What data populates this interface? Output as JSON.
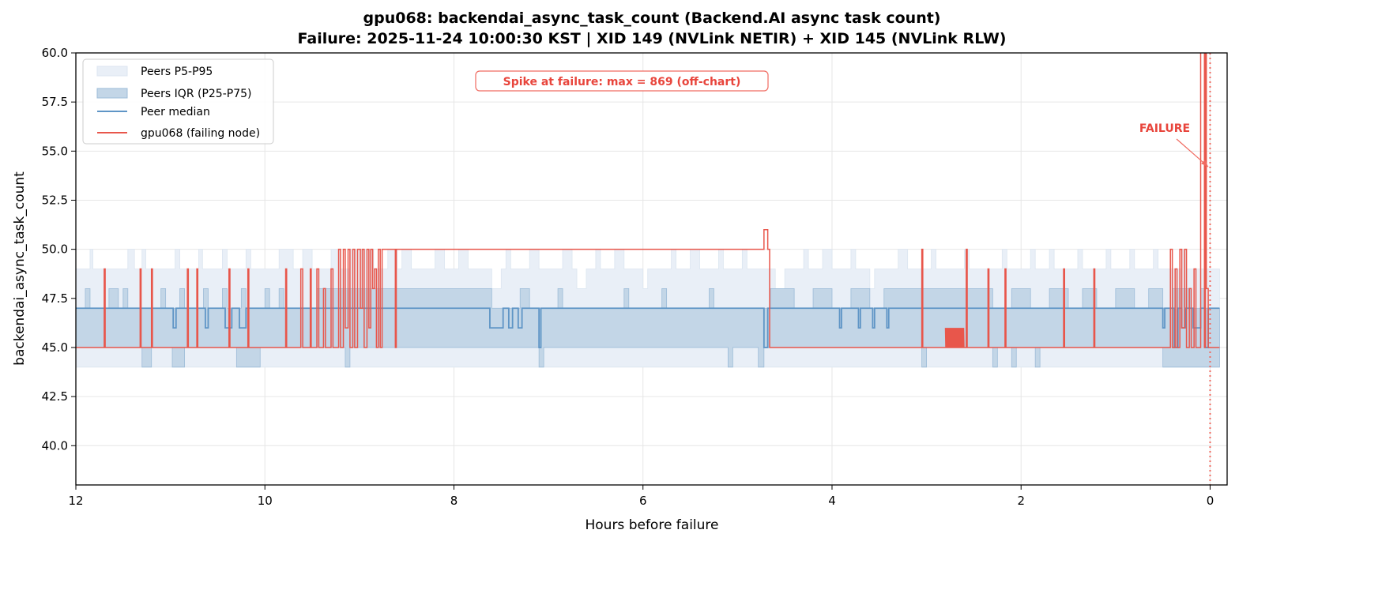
{
  "chart_data": {
    "type": "line",
    "title": "gpu068: backendai_async_task_count (Backend.AI async task count)",
    "subtitle": "Failure: 2025-11-24 10:00:30 KST | XID 149 (NVLink NETIR) + XID 145 (NVLink RLW)",
    "xlabel": "Hours before failure",
    "ylabel": "backendai_async_task_count",
    "xlim": [
      12,
      -0.18
    ],
    "ylim": [
      38,
      60
    ],
    "xticks": [
      12,
      10,
      8,
      6,
      4,
      2,
      0
    ],
    "xtick_labels": [
      "12",
      "10",
      "8",
      "6",
      "4",
      "2",
      "0"
    ],
    "yticks": [
      40,
      42.5,
      45,
      47.5,
      50,
      52.5,
      55,
      57.5,
      60
    ],
    "ytick_labels": [
      "40.0",
      "42.5",
      "45.0",
      "47.5",
      "50.0",
      "52.5",
      "55.0",
      "57.5",
      "60.0"
    ],
    "grid": true,
    "legend_position": "top-left",
    "legend": [
      "Peers P5-P95",
      "Peers IQR (P25-P75)",
      "Peer median",
      "gpu068 (failing node)"
    ],
    "colors": {
      "band_outer": "#e9eff7",
      "band_iqr": "#c3d6e7",
      "band_iqr_edge": "#9dbcd8",
      "median": "#5f95c6",
      "node": "#e8564b",
      "failure": "#f06a60"
    },
    "x_range_hours": [
      12,
      -0.1
    ],
    "peers": {
      "p5": {
        "base": 44,
        "runs": []
      },
      "p95": {
        "base": 49,
        "runs": [
          [
            11.85,
            11.82,
            50
          ],
          [
            11.45,
            11.38,
            50
          ],
          [
            11.3,
            11.26,
            50
          ],
          [
            10.95,
            10.9,
            50
          ],
          [
            10.7,
            10.66,
            50
          ],
          [
            10.45,
            10.4,
            50
          ],
          [
            10.2,
            10.15,
            50
          ],
          [
            9.85,
            9.7,
            50
          ],
          [
            9.6,
            9.5,
            50
          ],
          [
            9.3,
            9.2,
            50
          ],
          [
            9.1,
            8.85,
            50
          ],
          [
            8.7,
            8.6,
            50
          ],
          [
            8.55,
            8.45,
            50
          ],
          [
            8.2,
            8.1,
            50
          ],
          [
            7.95,
            7.85,
            50
          ],
          [
            7.6,
            7.5,
            48
          ],
          [
            7.45,
            7.4,
            50
          ],
          [
            7.2,
            7.1,
            50
          ],
          [
            6.85,
            6.75,
            50
          ],
          [
            6.7,
            6.6,
            48
          ],
          [
            6.5,
            6.45,
            50
          ],
          [
            6.3,
            6.2,
            50
          ],
          [
            6.0,
            5.95,
            48
          ],
          [
            5.7,
            5.65,
            50
          ],
          [
            5.5,
            5.4,
            50
          ],
          [
            5.2,
            5.15,
            50
          ],
          [
            4.95,
            4.9,
            50
          ],
          [
            4.6,
            4.5,
            48
          ],
          [
            4.3,
            4.25,
            50
          ],
          [
            4.1,
            4.0,
            50
          ],
          [
            3.8,
            3.75,
            50
          ],
          [
            3.6,
            3.55,
            48
          ],
          [
            3.3,
            3.2,
            50
          ],
          [
            2.95,
            2.9,
            50
          ],
          [
            2.6,
            2.55,
            50
          ],
          [
            2.2,
            2.15,
            50
          ],
          [
            1.9,
            1.85,
            50
          ],
          [
            1.7,
            1.65,
            50
          ],
          [
            1.4,
            1.35,
            50
          ],
          [
            1.1,
            1.05,
            50
          ],
          [
            0.85,
            0.8,
            50
          ],
          [
            0.6,
            0.55,
            50
          ],
          [
            0.3,
            0.25,
            50
          ]
        ]
      },
      "p25": {
        "base": 45,
        "runs": [
          [
            11.3,
            11.2,
            44
          ],
          [
            10.98,
            10.85,
            44
          ],
          [
            10.3,
            10.05,
            44
          ],
          [
            9.15,
            9.1,
            44
          ],
          [
            7.1,
            7.05,
            44
          ],
          [
            5.1,
            5.05,
            44
          ],
          [
            4.78,
            4.72,
            44
          ],
          [
            3.05,
            3.0,
            44
          ],
          [
            2.3,
            2.25,
            44
          ],
          [
            2.1,
            2.05,
            44
          ],
          [
            1.85,
            1.8,
            44
          ],
          [
            0.5,
            -0.1,
            44
          ]
        ]
      },
      "p75": {
        "base": 47,
        "runs": [
          [
            11.9,
            11.85,
            48
          ],
          [
            11.65,
            11.55,
            48
          ],
          [
            11.5,
            11.45,
            48
          ],
          [
            11.1,
            11.05,
            48
          ],
          [
            10.9,
            10.85,
            48
          ],
          [
            10.65,
            10.6,
            48
          ],
          [
            10.45,
            10.4,
            48
          ],
          [
            10.25,
            10.2,
            48
          ],
          [
            10.0,
            9.95,
            48
          ],
          [
            9.85,
            9.8,
            48
          ],
          [
            9.45,
            7.6,
            48
          ],
          [
            7.3,
            7.2,
            48
          ],
          [
            6.9,
            6.85,
            48
          ],
          [
            6.2,
            6.15,
            48
          ],
          [
            5.8,
            5.75,
            48
          ],
          [
            5.3,
            5.25,
            48
          ],
          [
            4.65,
            4.4,
            48
          ],
          [
            4.2,
            4.0,
            48
          ],
          [
            3.8,
            3.6,
            48
          ],
          [
            3.45,
            2.3,
            48
          ],
          [
            2.1,
            1.9,
            48
          ],
          [
            1.7,
            1.5,
            48
          ],
          [
            1.35,
            1.2,
            48
          ],
          [
            1.0,
            0.8,
            48
          ],
          [
            0.65,
            0.5,
            48
          ],
          [
            0.4,
            0.2,
            48
          ],
          [
            0.1,
            0.05,
            48
          ]
        ]
      },
      "median": {
        "base": 47,
        "runs": [
          [
            10.97,
            10.94,
            46
          ],
          [
            10.63,
            10.6,
            46
          ],
          [
            10.42,
            10.35,
            46
          ],
          [
            10.27,
            10.2,
            46
          ],
          [
            7.62,
            7.48,
            46
          ],
          [
            7.42,
            7.38,
            46
          ],
          [
            7.32,
            7.28,
            46
          ],
          [
            7.1,
            7.08,
            45
          ],
          [
            4.72,
            4.68,
            45
          ],
          [
            3.92,
            3.9,
            46
          ],
          [
            3.72,
            3.7,
            46
          ],
          [
            3.57,
            3.55,
            46
          ],
          [
            3.42,
            3.4,
            46
          ],
          [
            0.5,
            0.48,
            46
          ],
          [
            0.38,
            0.34,
            45
          ],
          [
            0.3,
            0.26,
            46
          ],
          [
            0.18,
            0.1,
            46
          ],
          [
            0.05,
            0.02,
            45
          ]
        ]
      }
    },
    "node": {
      "name": "gpu068",
      "points": [
        [
          12,
          45
        ],
        [
          11.7,
          49
        ],
        [
          11.69,
          45
        ],
        [
          11.32,
          49
        ],
        [
          11.31,
          45
        ],
        [
          11.2,
          49
        ],
        [
          11.19,
          45
        ],
        [
          10.82,
          49
        ],
        [
          10.81,
          45
        ],
        [
          10.72,
          49
        ],
        [
          10.71,
          45
        ],
        [
          10.38,
          49
        ],
        [
          10.37,
          45
        ],
        [
          10.18,
          49
        ],
        [
          10.17,
          45
        ],
        [
          9.78,
          49
        ],
        [
          9.77,
          45
        ],
        [
          9.62,
          49
        ],
        [
          9.6,
          45
        ],
        [
          9.52,
          49
        ],
        [
          9.51,
          45
        ],
        [
          9.45,
          49
        ],
        [
          9.43,
          45
        ],
        [
          9.38,
          48
        ],
        [
          9.36,
          45
        ],
        [
          9.3,
          49
        ],
        [
          9.28,
          45
        ],
        [
          9.22,
          50
        ],
        [
          9.2,
          45
        ],
        [
          9.17,
          50
        ],
        [
          9.15,
          46
        ],
        [
          9.12,
          50
        ],
        [
          9.1,
          45
        ],
        [
          9.07,
          50
        ],
        [
          9.05,
          45
        ],
        [
          9.02,
          50
        ],
        [
          8.99,
          47
        ],
        [
          8.97,
          50
        ],
        [
          8.95,
          45
        ],
        [
          8.92,
          50
        ],
        [
          8.9,
          46
        ],
        [
          8.88,
          50
        ],
        [
          8.86,
          48
        ],
        [
          8.84,
          49
        ],
        [
          8.82,
          45
        ],
        [
          8.8,
          50
        ],
        [
          8.78,
          45
        ],
        [
          8.76,
          50
        ],
        [
          8.62,
          45
        ],
        [
          8.61,
          50
        ],
        [
          4.72,
          51
        ],
        [
          4.68,
          50
        ],
        [
          4.66,
          45
        ],
        [
          3.05,
          50
        ],
        [
          3.04,
          45
        ],
        [
          2.6,
          45
        ],
        [
          2.58,
          50
        ],
        [
          2.57,
          45
        ],
        [
          2.35,
          49
        ],
        [
          2.34,
          45
        ],
        [
          2.17,
          49
        ],
        [
          2.16,
          45
        ],
        [
          1.55,
          49
        ],
        [
          1.54,
          45
        ],
        [
          1.23,
          49
        ],
        [
          1.22,
          45
        ],
        [
          0.42,
          50
        ],
        [
          0.4,
          45
        ],
        [
          0.37,
          49
        ],
        [
          0.35,
          45
        ],
        [
          0.32,
          50
        ],
        [
          0.3,
          46
        ],
        [
          0.27,
          50
        ],
        [
          0.25,
          45
        ],
        [
          0.22,
          48
        ],
        [
          0.2,
          45
        ],
        [
          0.17,
          49
        ],
        [
          0.15,
          45
        ],
        [
          0.1,
          869
        ],
        [
          0.06,
          45
        ],
        [
          0.05,
          869
        ],
        [
          0.04,
          48
        ],
        [
          0.02,
          45
        ],
        [
          -0.1,
          45
        ]
      ],
      "oscillation": {
        "from": 2.8,
        "to": 2.6,
        "low": 45,
        "high": 46
      },
      "max": 869
    },
    "annotations": {
      "spike_box": "Spike at failure: max = 869 (off-chart)",
      "failure_label": "FAILURE",
      "failure_hour": 0,
      "failure_arrow_target": [
        0.02,
        54.2
      ]
    }
  }
}
